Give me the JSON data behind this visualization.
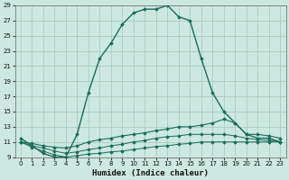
{
  "xlabel": "Humidex (Indice chaleur)",
  "ylabel": "",
  "xlim": [
    -0.5,
    23.5
  ],
  "ylim": [
    9,
    29
  ],
  "yticks": [
    9,
    11,
    13,
    15,
    17,
    19,
    21,
    23,
    25,
    27,
    29
  ],
  "xticks": [
    0,
    1,
    2,
    3,
    4,
    5,
    6,
    7,
    8,
    9,
    10,
    11,
    12,
    13,
    14,
    15,
    16,
    17,
    18,
    19,
    20,
    21,
    22,
    23
  ],
  "background_color": "#cce8e0",
  "grid_color": "#aaccbf",
  "line_color": "#1a6b5a",
  "curve1_x": [
    0,
    1,
    2,
    3,
    4,
    5,
    6,
    7,
    8,
    9,
    10,
    11,
    12,
    13,
    14,
    15,
    16,
    17,
    18,
    19,
    20,
    21,
    22,
    23
  ],
  "curve1_y": [
    11.5,
    10.5,
    9.5,
    9.0,
    9.0,
    12.0,
    17.5,
    22.0,
    24.0,
    26.5,
    28.0,
    28.5,
    28.5,
    29.0,
    27.5,
    27.0,
    22.0,
    17.5,
    15.0,
    13.5,
    12.0,
    11.5,
    11.5,
    11.0
  ],
  "curve2_x": [
    0,
    1,
    2,
    3,
    4,
    5,
    6,
    7,
    8,
    9,
    10,
    11,
    12,
    13,
    14,
    15,
    16,
    17,
    18,
    19,
    20,
    21,
    22,
    23
  ],
  "curve2_y": [
    11.0,
    10.8,
    10.5,
    10.3,
    10.2,
    10.5,
    11.0,
    11.3,
    11.5,
    11.8,
    12.0,
    12.2,
    12.5,
    12.7,
    13.0,
    13.0,
    13.2,
    13.5,
    14.0,
    13.5,
    12.0,
    12.0,
    11.8,
    11.5
  ],
  "curve3_x": [
    0,
    1,
    2,
    3,
    4,
    5,
    6,
    7,
    8,
    9,
    10,
    11,
    12,
    13,
    14,
    15,
    16,
    17,
    18,
    19,
    20,
    21,
    22,
    23
  ],
  "curve3_y": [
    11.0,
    10.5,
    10.2,
    9.8,
    9.5,
    9.7,
    10.0,
    10.2,
    10.5,
    10.7,
    11.0,
    11.2,
    11.5,
    11.7,
    11.8,
    12.0,
    12.0,
    12.0,
    12.0,
    11.8,
    11.5,
    11.3,
    11.2,
    11.0
  ],
  "curve4_x": [
    0,
    1,
    2,
    3,
    4,
    5,
    6,
    7,
    8,
    9,
    10,
    11,
    12,
    13,
    14,
    15,
    16,
    17,
    18,
    19,
    20,
    21,
    22,
    23
  ],
  "curve4_y": [
    11.0,
    10.3,
    9.8,
    9.3,
    9.0,
    9.2,
    9.4,
    9.5,
    9.7,
    9.8,
    10.0,
    10.2,
    10.4,
    10.5,
    10.7,
    10.8,
    11.0,
    11.0,
    11.0,
    11.0,
    11.0,
    11.0,
    11.0,
    11.0
  ]
}
